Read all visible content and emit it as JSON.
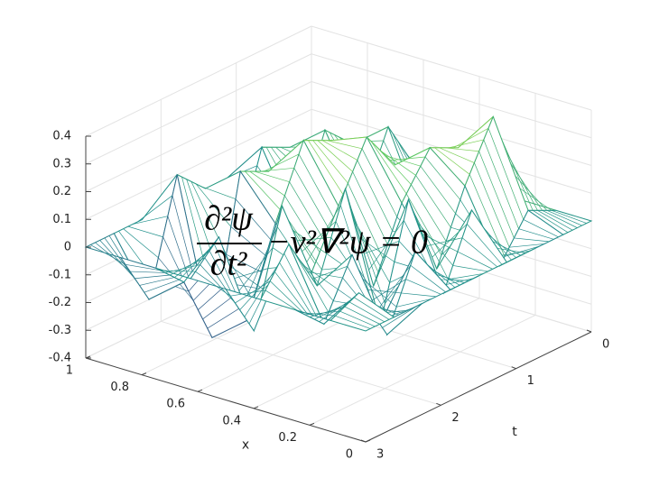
{
  "chart_data": {
    "type": "surface",
    "xlabel": "x",
    "ylabel": "t",
    "annotation": {
      "numerator": "∂²ψ",
      "denominator": "∂t²",
      "rest": "−v²∇²ψ = 0"
    },
    "x": [
      0,
      0.125,
      0.25,
      0.375,
      0.5,
      0.625,
      0.75,
      0.875,
      1
    ],
    "y": [
      0,
      0.375,
      0.75,
      1.125,
      1.5,
      1.875,
      2.25,
      2.625,
      3
    ],
    "z": [
      [
        0,
        0,
        0,
        0,
        0,
        0,
        0,
        0,
        0
      ],
      [
        0,
        0.05,
        -0.1,
        0.15,
        -0.1,
        0.1,
        -0.15,
        0.05,
        0
      ],
      [
        0,
        0.35,
        0.15,
        -0.1,
        0.2,
        -0.2,
        0.1,
        -0.1,
        0
      ],
      [
        0,
        0.2,
        0.25,
        0.1,
        -0.15,
        0.25,
        -0.05,
        0.15,
        0
      ],
      [
        0,
        -0.1,
        0.15,
        0.3,
        0.1,
        -0.1,
        0.2,
        -0.2,
        0
      ],
      [
        0,
        0.2,
        -0.05,
        0.25,
        0.3,
        0.05,
        -0.25,
        0.1,
        0
      ],
      [
        0,
        0.1,
        0.2,
        -0.1,
        0.15,
        0.2,
        -0.35,
        -0.1,
        0
      ],
      [
        0,
        -0.05,
        0.1,
        0.15,
        -0.2,
        0.1,
        0.2,
        -0.2,
        0
      ],
      [
        0,
        0,
        0,
        0,
        0,
        0,
        0,
        0,
        0
      ]
    ],
    "xlim": [
      0,
      1
    ],
    "ylim": [
      0,
      3
    ],
    "zlim": [
      -0.4,
      0.4
    ],
    "xticks": [
      1,
      0.8,
      0.6,
      0.4,
      0.2,
      0
    ],
    "yticks": [
      0,
      1,
      2,
      3
    ],
    "zticks": [
      0.4,
      0.3,
      0.2,
      0.1,
      0,
      -0.1,
      -0.2,
      -0.3,
      -0.4
    ],
    "grid": true,
    "colormap": [
      "#440154",
      "#3b528b",
      "#21918c",
      "#5ec962",
      "#fde725"
    ]
  }
}
